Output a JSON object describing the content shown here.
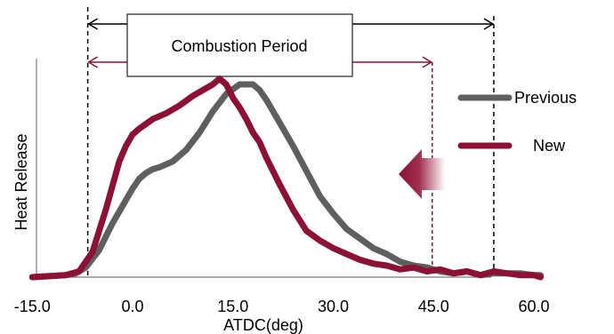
{
  "chart_data": {
    "type": "line",
    "title": "",
    "xlabel": "ATDC(deg)",
    "ylabel": "Heat Release",
    "xlim": [
      -15,
      62
    ],
    "ylim": [
      0,
      1
    ],
    "x_ticks": [
      -15,
      0,
      15,
      30,
      45,
      60
    ],
    "x_tick_labels": [
      "-15.0",
      "0.0",
      "15.0",
      "30.0",
      "45.0",
      "60.0"
    ],
    "grid": false,
    "legend_position": "right",
    "series": [
      {
        "name": "Previous",
        "color": "#5f5f5f",
        "x": [
          -15,
          -10,
          -8.5,
          -7,
          -5,
          -3,
          -1,
          0,
          1,
          2,
          3,
          4,
          6,
          8,
          10,
          12,
          14,
          16,
          18,
          19,
          20,
          21,
          22,
          24,
          26,
          28,
          30,
          32,
          34,
          36,
          38,
          40,
          42,
          44,
          46,
          48,
          50,
          52,
          54,
          56,
          58,
          60,
          61
        ],
        "y": [
          0,
          0.01,
          0.02,
          0.05,
          0.14,
          0.28,
          0.4,
          0.46,
          0.51,
          0.54,
          0.56,
          0.57,
          0.6,
          0.66,
          0.75,
          0.86,
          0.95,
          1.0,
          1.0,
          0.97,
          0.92,
          0.86,
          0.8,
          0.68,
          0.55,
          0.42,
          0.33,
          0.25,
          0.2,
          0.15,
          0.12,
          0.08,
          0.06,
          0.05,
          0.03,
          0.02,
          0.03,
          0.01,
          0.02,
          0.02,
          0.02,
          0.01,
          0.01
        ]
      },
      {
        "name": "New",
        "color": "#8c1134",
        "x": [
          -15,
          -10,
          -8,
          -6,
          -4,
          -2,
          -1,
          0,
          1,
          3,
          5,
          7,
          9,
          11,
          12,
          13,
          14,
          15,
          16,
          17,
          18,
          19,
          20,
          22,
          24,
          26,
          28,
          30,
          32,
          34,
          36,
          38,
          40,
          42,
          44,
          46,
          48,
          50,
          52,
          54,
          56,
          58,
          60,
          61
        ],
        "y": [
          0,
          0.01,
          0.03,
          0.13,
          0.35,
          0.6,
          0.68,
          0.74,
          0.77,
          0.82,
          0.85,
          0.89,
          0.94,
          0.98,
          1.0,
          1.03,
          1.0,
          0.93,
          0.88,
          0.82,
          0.75,
          0.7,
          0.62,
          0.48,
          0.35,
          0.24,
          0.19,
          0.15,
          0.12,
          0.09,
          0.07,
          0.06,
          0.04,
          0.05,
          0.03,
          0.04,
          0.02,
          0.03,
          0.01,
          0.03,
          0.02,
          0.01,
          0.01,
          0.0
        ]
      }
    ],
    "annotations": {
      "box_label": "Combustion Period",
      "previous_period_x": [
        -6.7,
        54
      ],
      "new_period_x": [
        -6.7,
        44.8
      ],
      "arrow_direction": "left"
    }
  }
}
